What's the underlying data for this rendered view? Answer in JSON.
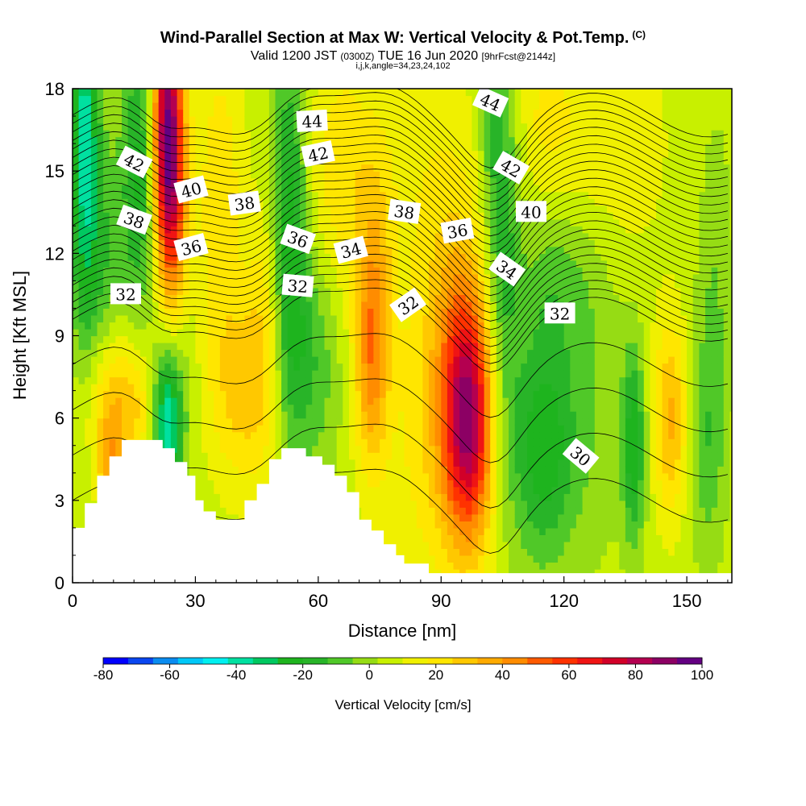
{
  "chart_data": {
    "type": "heatmap",
    "title": "Wind-Parallel Section at Max W: Vertical Velocity & Pot.Temp.",
    "title_tag": "(C)",
    "subtitle_a": "Valid 1200 JST",
    "subtitle_b": "(0300Z)",
    "subtitle_c": "TUE 16 Jun 2020",
    "subtitle_d": "[9hrFcst@2144z]",
    "subtitle_line2": "i,j,k,angle=34,23,24,102",
    "xlabel": "Distance [nm]",
    "ylabel": "Height [Kft MSL]",
    "xlim": [
      0,
      161
    ],
    "ylim": [
      0,
      18
    ],
    "xticks": [
      "0",
      "30",
      "60",
      "90",
      "120",
      "150"
    ],
    "yticks": [
      "0",
      "3",
      "6",
      "9",
      "12",
      "15",
      "18"
    ],
    "colorbar": {
      "title": "Vertical Velocity [cm/s]",
      "labels": [
        "-80",
        "-60",
        "-40",
        "-20",
        "0",
        "20",
        "40",
        "60",
        "80",
        "100"
      ],
      "bounds": [
        -80,
        100
      ],
      "colors": [
        "#0000ff",
        "#0a46f0",
        "#0a8cf0",
        "#00c8f8",
        "#00f0f0",
        "#00e0a0",
        "#00c860",
        "#1eb41e",
        "#28b428",
        "#50c828",
        "#96dc14",
        "#c8f000",
        "#f0f000",
        "#ffe600",
        "#ffc800",
        "#ffaa00",
        "#ff8c00",
        "#ff5a00",
        "#ff3200",
        "#f01414",
        "#d20028",
        "#b40050",
        "#8c0064",
        "#640082"
      ]
    },
    "terrain": [
      [
        0,
        2.0
      ],
      [
        3,
        2.0
      ],
      [
        3,
        2.9
      ],
      [
        6,
        2.9
      ],
      [
        6,
        3.9
      ],
      [
        9,
        3.9
      ],
      [
        9,
        4.6
      ],
      [
        12,
        4.6
      ],
      [
        12,
        5.2
      ],
      [
        22,
        5.2
      ],
      [
        22,
        4.9
      ],
      [
        25,
        4.9
      ],
      [
        25,
        4.4
      ],
      [
        28,
        4.4
      ],
      [
        28,
        3.9
      ],
      [
        30,
        3.9
      ],
      [
        30,
        3.0
      ],
      [
        32,
        3.0
      ],
      [
        32,
        2.6
      ],
      [
        35,
        2.6
      ],
      [
        35,
        2.3
      ],
      [
        42,
        2.3
      ],
      [
        42,
        3.0
      ],
      [
        45,
        3.0
      ],
      [
        45,
        3.6
      ],
      [
        48,
        3.6
      ],
      [
        48,
        4.5
      ],
      [
        51,
        4.5
      ],
      [
        51,
        4.9
      ],
      [
        57,
        4.9
      ],
      [
        57,
        4.6
      ],
      [
        61,
        4.6
      ],
      [
        61,
        4.3
      ],
      [
        64,
        4.3
      ],
      [
        64,
        3.9
      ],
      [
        67,
        3.9
      ],
      [
        67,
        3.3
      ],
      [
        70,
        3.3
      ],
      [
        70,
        2.3
      ],
      [
        73,
        2.3
      ],
      [
        73,
        1.9
      ],
      [
        76,
        1.9
      ],
      [
        76,
        1.4
      ],
      [
        79,
        1.4
      ],
      [
        79,
        1.0
      ],
      [
        81,
        1.0
      ],
      [
        81,
        0.7
      ],
      [
        87,
        0.7
      ],
      [
        87,
        0.35
      ],
      [
        100,
        0.35
      ],
      [
        161,
        0.35
      ]
    ],
    "contour_labels": [
      {
        "text": "44",
        "x": 58.5,
        "y": 16.8,
        "angle": -3
      },
      {
        "text": "44",
        "x": 102,
        "y": 17.5,
        "angle": 24
      },
      {
        "text": "42",
        "x": 15,
        "y": 15.3,
        "angle": 27
      },
      {
        "text": "42",
        "x": 60,
        "y": 15.6,
        "angle": -12
      },
      {
        "text": "42",
        "x": 107,
        "y": 15.1,
        "angle": 30
      },
      {
        "text": "40",
        "x": 29,
        "y": 14.3,
        "angle": -15
      },
      {
        "text": "40",
        "x": 112,
        "y": 13.5,
        "angle": 0
      },
      {
        "text": "38",
        "x": 15,
        "y": 13.2,
        "angle": 20
      },
      {
        "text": "38",
        "x": 42,
        "y": 13.8,
        "angle": -8
      },
      {
        "text": "38",
        "x": 81,
        "y": 13.5,
        "angle": 8
      },
      {
        "text": "36",
        "x": 29,
        "y": 12.2,
        "angle": -15
      },
      {
        "text": "36",
        "x": 55,
        "y": 12.5,
        "angle": 20
      },
      {
        "text": "36",
        "x": 94,
        "y": 12.8,
        "angle": -10
      },
      {
        "text": "34",
        "x": 68,
        "y": 12.1,
        "angle": -15
      },
      {
        "text": "34",
        "x": 106,
        "y": 11.4,
        "angle": 35
      },
      {
        "text": "32",
        "x": 13,
        "y": 10.5,
        "angle": 0
      },
      {
        "text": "32",
        "x": 55,
        "y": 10.8,
        "angle": 5
      },
      {
        "text": "32",
        "x": 82,
        "y": 10.1,
        "angle": -35
      },
      {
        "text": "32",
        "x": 119,
        "y": 9.8,
        "angle": 0
      },
      {
        "text": "30",
        "x": 124,
        "y": 4.6,
        "angle": 40
      }
    ]
  }
}
